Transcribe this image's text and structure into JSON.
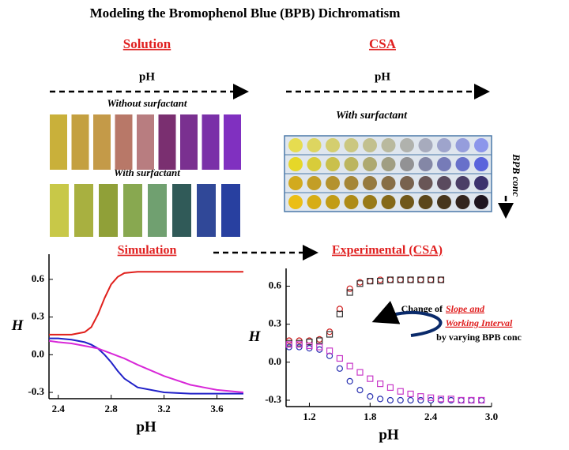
{
  "title": "Modeling the Bromophenol Blue (BPB) Dichromatism",
  "solution": {
    "heading": "Solution",
    "axis": "pH",
    "without": "Without  surfactant",
    "with": "With surfactant"
  },
  "csa": {
    "heading": "CSA",
    "axis": "pH",
    "with": "With surfactant",
    "side": "BPB conc"
  },
  "chart_data": [
    {
      "type": "line",
      "title": "Simulation",
      "xlabel": "pH",
      "ylabel": "H",
      "x": [
        2.33,
        2.4,
        2.5,
        2.6,
        2.65,
        2.7,
        2.75,
        2.8,
        2.85,
        2.9,
        3.0,
        3.2,
        3.4,
        3.6,
        3.8
      ],
      "series": [
        {
          "color": "#e0201c",
          "values": [
            0.16,
            0.16,
            0.16,
            0.18,
            0.22,
            0.32,
            0.45,
            0.56,
            0.62,
            0.65,
            0.66,
            0.66,
            0.66,
            0.66,
            0.66
          ]
        },
        {
          "color": "#2020c8",
          "values": [
            0.13,
            0.13,
            0.12,
            0.1,
            0.08,
            0.05,
            0,
            -0.06,
            -0.13,
            -0.19,
            -0.26,
            -0.3,
            -0.31,
            -0.31,
            -0.31
          ]
        },
        {
          "color": "#d828d8",
          "values": [
            0.11,
            0.1,
            0.09,
            0.07,
            0.06,
            0.05,
            0.03,
            0.01,
            -0.01,
            -0.03,
            -0.08,
            -0.17,
            -0.24,
            -0.28,
            -0.3
          ]
        }
      ],
      "xlim": [
        2.33,
        3.8
      ],
      "xticks": [
        2.4,
        2.8,
        3.2,
        3.6
      ],
      "ylim": [
        -0.35,
        0.8
      ],
      "yticks": [
        0.6,
        0.3,
        {
          "value": 0,
          "label": "0.0"
        },
        -0.3
      ]
    },
    {
      "type": "scatter",
      "title": "Experimental (CSA)",
      "xlabel": "pH",
      "ylabel": "H",
      "annotation": [
        "Change of",
        "Slope and",
        "Working Interval",
        "by varying BPB conc"
      ],
      "x": [
        1.0,
        1.1,
        1.2,
        1.3,
        1.4,
        1.5,
        1.6,
        1.7,
        1.8,
        1.9,
        2.0,
        2.1,
        2.2,
        2.3,
        2.4,
        2.5,
        2.6,
        2.7,
        2.8,
        2.9
      ],
      "series": [
        {
          "color": "#d02020",
          "values": [
            0.17,
            0.17,
            0.17,
            0.18,
            0.24,
            0.42,
            0.58,
            0.63,
            0.64,
            0.65,
            0.65,
            0.65,
            0.65,
            0.65,
            0.65,
            0.65,
            null,
            null,
            null,
            null
          ]
        },
        {
          "color": "#303030",
          "values": [
            0.15,
            0.15,
            0.16,
            0.17,
            0.22,
            0.38,
            0.55,
            0.62,
            0.64,
            0.64,
            0.65,
            0.65,
            0.65,
            0.65,
            0.65,
            0.65,
            null,
            null,
            null,
            null
          ]
        },
        {
          "color": "#2830b0",
          "values": [
            0.12,
            0.12,
            0.11,
            0.1,
            0.05,
            -0.05,
            -0.15,
            -0.22,
            -0.27,
            -0.29,
            -0.3,
            -0.3,
            -0.3,
            -0.3,
            -0.3,
            -0.3,
            -0.3,
            -0.3,
            -0.3,
            -0.3
          ]
        },
        {
          "color": "#c838c8",
          "values": [
            0.14,
            0.14,
            0.13,
            0.12,
            0.09,
            0.03,
            -0.03,
            -0.08,
            -0.13,
            -0.17,
            -0.2,
            -0.23,
            -0.25,
            -0.27,
            -0.28,
            -0.29,
            -0.29,
            -0.3,
            -0.3,
            -0.3
          ]
        }
      ],
      "xlim": [
        0.97,
        3.0
      ],
      "xticks": [
        1.2,
        1.8,
        2.4,
        {
          "value": 3,
          "label": "3.0"
        }
      ],
      "ylim": [
        -0.35,
        0.74
      ],
      "yticks": [
        0.6,
        0.3,
        {
          "value": 0,
          "label": "0.0"
        },
        -0.3
      ]
    }
  ]
}
